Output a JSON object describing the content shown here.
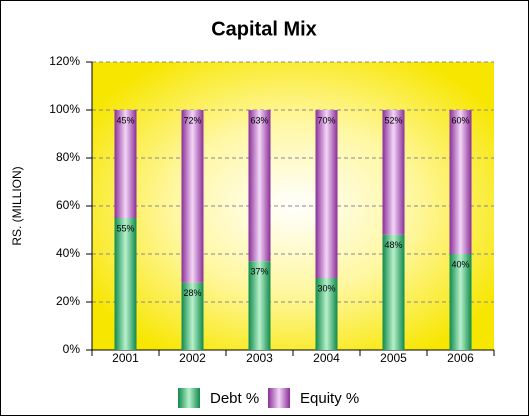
{
  "chart_data": {
    "type": "stacked_bar",
    "title": "Capital Mix",
    "y_label": "RS. (MILLION)",
    "categories": [
      "2001",
      "2002",
      "2003",
      "2004",
      "2005",
      "2006"
    ],
    "series": [
      {
        "name": "Debt %",
        "color": "#1aa35a",
        "values": [
          55,
          28,
          37,
          30,
          48,
          40
        ],
        "value_labels": [
          "55%",
          "28%",
          "37%",
          "30%",
          "48%",
          "40%"
        ]
      },
      {
        "name": "Equity %",
        "color": "#9b3fa8",
        "values": [
          45,
          72,
          63,
          70,
          52,
          60
        ],
        "value_labels": [
          "45%",
          "72%",
          "63%",
          "70%",
          "52%",
          "60%"
        ]
      }
    ],
    "ylim": [
      0,
      120
    ],
    "yticks": [
      {
        "value": 0,
        "label": "0%"
      },
      {
        "value": 20,
        "label": "20%"
      },
      {
        "value": 40,
        "label": "40%"
      },
      {
        "value": 60,
        "label": "60%"
      },
      {
        "value": 80,
        "label": "80%"
      },
      {
        "value": 100,
        "label": "100%"
      },
      {
        "value": 120,
        "label": "120%"
      }
    ],
    "grid": true,
    "legend": "bottom"
  }
}
